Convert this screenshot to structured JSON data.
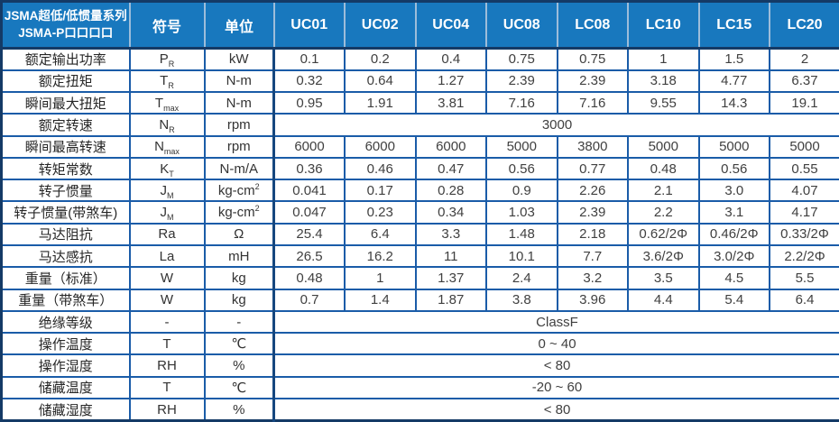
{
  "table": {
    "title_line1": "JSMA超低/低惯量系列",
    "title_line2": "JSMA-P口口口口",
    "symbol_header": "符号",
    "unit_header": "单位",
    "model_columns": [
      "UC01",
      "UC02",
      "UC04",
      "UC08",
      "LC08",
      "LC10",
      "LC15",
      "LC20"
    ],
    "rows": [
      {
        "label": "额定输出功率",
        "symbol": "P",
        "symbol_sub": "R",
        "unit": "kW",
        "values": [
          "0.1",
          "0.2",
          "0.4",
          "0.75",
          "0.75",
          "1",
          "1.5",
          "2"
        ]
      },
      {
        "label": "额定扭矩",
        "symbol": "T",
        "symbol_sub": "R",
        "unit": "N-m",
        "values": [
          "0.32",
          "0.64",
          "1.27",
          "2.39",
          "2.39",
          "3.18",
          "4.77",
          "6.37"
        ]
      },
      {
        "label": "瞬间最大扭矩",
        "symbol": "T",
        "symbol_sub": "max",
        "unit": "N-m",
        "values": [
          "0.95",
          "1.91",
          "3.81",
          "7.16",
          "7.16",
          "9.55",
          "14.3",
          "19.1"
        ]
      },
      {
        "label": "额定转速",
        "symbol": "N",
        "symbol_sub": "R",
        "unit": "rpm",
        "merged": "3000"
      },
      {
        "label": "瞬间最高转速",
        "symbol": "N",
        "symbol_sub": "max",
        "unit": "rpm",
        "values": [
          "6000",
          "6000",
          "6000",
          "5000",
          "3800",
          "5000",
          "5000",
          "5000"
        ]
      },
      {
        "label": "转矩常数",
        "symbol": "K",
        "symbol_sub": "T",
        "unit": "N-m/A",
        "values": [
          "0.36",
          "0.46",
          "0.47",
          "0.56",
          "0.77",
          "0.48",
          "0.56",
          "0.55"
        ]
      },
      {
        "label": "转子惯量",
        "symbol": "J",
        "symbol_sub": "M",
        "unit": "kg-cm",
        "unit_sup": "2",
        "values": [
          "0.041",
          "0.17",
          "0.28",
          "0.9",
          "2.26",
          "2.1",
          "3.0",
          "4.07"
        ]
      },
      {
        "label": "转子惯量(带煞车)",
        "symbol": "J",
        "symbol_sub": "M",
        "unit": "kg-cm",
        "unit_sup": "2",
        "values": [
          "0.047",
          "0.23",
          "0.34",
          "1.03",
          "2.39",
          "2.2",
          "3.1",
          "4.17"
        ]
      },
      {
        "label": "马达阻抗",
        "symbol": "Ra",
        "unit": "Ω",
        "values": [
          "25.4",
          "6.4",
          "3.3",
          "1.48",
          "2.18",
          "0.62/2Φ",
          "0.46/2Φ",
          "0.33/2Φ"
        ]
      },
      {
        "label": "马达感抗",
        "symbol": "La",
        "unit": "mH",
        "values": [
          "26.5",
          "16.2",
          "11",
          "10.1",
          "7.7",
          "3.6/2Φ",
          "3.0/2Φ",
          "2.2/2Φ"
        ]
      },
      {
        "label": "重量（标准）",
        "symbol": "W",
        "unit": "kg",
        "values": [
          "0.48",
          "1",
          "1.37",
          "2.4",
          "3.2",
          "3.5",
          "4.5",
          "5.5"
        ]
      },
      {
        "label": "重量（带煞车）",
        "symbol": "W",
        "unit": "kg",
        "values": [
          "0.7",
          "1.4",
          "1.87",
          "3.8",
          "3.96",
          "4.4",
          "5.4",
          "6.4"
        ]
      },
      {
        "label": "绝缘等级",
        "symbol": "-",
        "unit": "-",
        "merged": "ClassF"
      },
      {
        "label": "操作温度",
        "symbol": "T",
        "unit": "℃",
        "merged": "0 ~ 40"
      },
      {
        "label": "操作湿度",
        "symbol": "RH",
        "unit": "%",
        "merged": "< 80"
      },
      {
        "label": "储藏温度",
        "symbol": "T",
        "unit": "℃",
        "merged": "-20 ~ 60"
      },
      {
        "label": "储藏湿度",
        "symbol": "RH",
        "unit": "%",
        "merged": "< 80"
      }
    ],
    "colors": {
      "header_bg": "#1878BE",
      "header_text": "#FFFFFF",
      "grid_line": "#1A5CA8",
      "outer_border": "#143A66",
      "value_text": "#404040"
    }
  }
}
